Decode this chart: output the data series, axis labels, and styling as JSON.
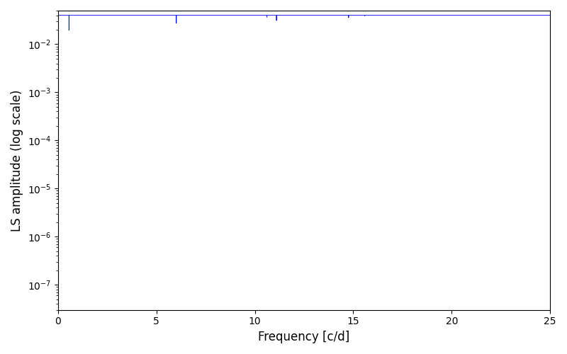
{
  "title": "",
  "xlabel": "Frequency [c/d]",
  "ylabel": "LS amplitude (log scale)",
  "xlim": [
    0,
    25
  ],
  "ylim": [
    3e-08,
    0.05
  ],
  "line_color": "#0000ff",
  "line_width": 0.6,
  "background_color": "#ffffff",
  "seed": 12345,
  "n_points": 8000,
  "freq_max": 25.0,
  "base_log_mean": -9.2,
  "base_log_std": 1.8,
  "figsize": [
    8.0,
    5.0
  ],
  "dpi": 100
}
